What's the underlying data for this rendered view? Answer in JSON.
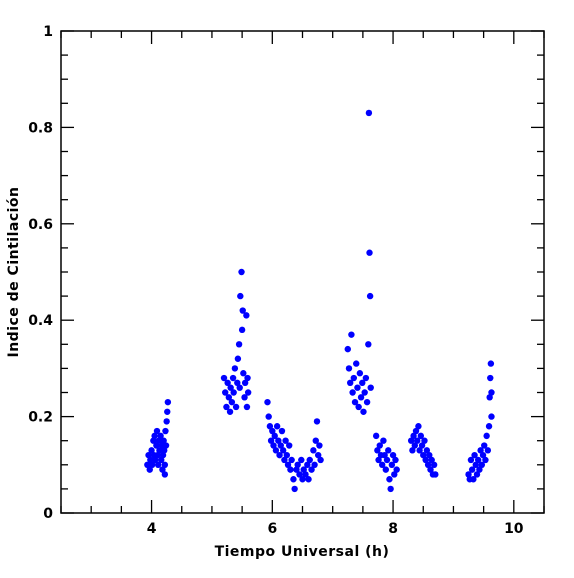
{
  "chart_data": {
    "type": "scatter",
    "title": "",
    "xlabel": "Tiempo Universal (h)",
    "ylabel": "Indice de Cintilación",
    "xlim": [
      2.5,
      10.5
    ],
    "ylim": [
      0,
      1
    ],
    "x_ticks": [
      4,
      6,
      8,
      10
    ],
    "x_tick_labels": [
      "4",
      "6",
      "8",
      "10"
    ],
    "y_ticks": [
      0,
      0.2,
      0.4,
      0.6,
      0.8,
      1
    ],
    "y_tick_labels": [
      "0",
      "0.2",
      "0.4",
      "0.6",
      "0.8",
      "1"
    ],
    "grid": false,
    "marker_color": "#0000ff",
    "series": [
      {
        "points": [
          [
            3.93,
            0.1
          ],
          [
            3.95,
            0.12
          ],
          [
            3.97,
            0.09
          ],
          [
            3.98,
            0.11
          ],
          [
            4.0,
            0.13
          ],
          [
            4.01,
            0.1
          ],
          [
            4.03,
            0.15
          ],
          [
            4.04,
            0.12
          ],
          [
            4.05,
            0.16
          ],
          [
            4.06,
            0.11
          ],
          [
            4.08,
            0.14
          ],
          [
            4.09,
            0.17
          ],
          [
            4.1,
            0.12
          ],
          [
            4.11,
            0.1
          ],
          [
            4.12,
            0.15
          ],
          [
            4.13,
            0.13
          ],
          [
            4.15,
            0.16
          ],
          [
            4.16,
            0.11
          ],
          [
            4.17,
            0.14
          ],
          [
            4.18,
            0.09
          ],
          [
            4.19,
            0.12
          ],
          [
            4.2,
            0.15
          ],
          [
            4.21,
            0.13
          ],
          [
            4.22,
            0.1
          ],
          [
            4.23,
            0.17
          ],
          [
            4.24,
            0.14
          ],
          [
            4.25,
            0.19
          ],
          [
            4.26,
            0.21
          ],
          [
            4.27,
            0.23
          ],
          [
            4.22,
            0.08
          ],
          [
            5.2,
            0.28
          ],
          [
            5.22,
            0.25
          ],
          [
            5.24,
            0.22
          ],
          [
            5.26,
            0.27
          ],
          [
            5.28,
            0.24
          ],
          [
            5.3,
            0.21
          ],
          [
            5.31,
            0.26
          ],
          [
            5.33,
            0.23
          ],
          [
            5.35,
            0.28
          ],
          [
            5.36,
            0.25
          ],
          [
            5.38,
            0.3
          ],
          [
            5.4,
            0.22
          ],
          [
            5.42,
            0.27
          ],
          [
            5.43,
            0.32
          ],
          [
            5.45,
            0.35
          ],
          [
            5.46,
            0.26
          ],
          [
            5.47,
            0.45
          ],
          [
            5.49,
            0.5
          ],
          [
            5.5,
            0.38
          ],
          [
            5.51,
            0.42
          ],
          [
            5.52,
            0.29
          ],
          [
            5.54,
            0.24
          ],
          [
            5.55,
            0.27
          ],
          [
            5.57,
            0.41
          ],
          [
            5.58,
            0.22
          ],
          [
            5.59,
            0.28
          ],
          [
            5.6,
            0.25
          ],
          [
            5.92,
            0.23
          ],
          [
            5.94,
            0.2
          ],
          [
            5.96,
            0.18
          ],
          [
            5.98,
            0.15
          ],
          [
            6.0,
            0.17
          ],
          [
            6.02,
            0.14
          ],
          [
            6.04,
            0.16
          ],
          [
            6.06,
            0.13
          ],
          [
            6.08,
            0.18
          ],
          [
            6.1,
            0.15
          ],
          [
            6.12,
            0.12
          ],
          [
            6.14,
            0.14
          ],
          [
            6.16,
            0.17
          ],
          [
            6.18,
            0.13
          ],
          [
            6.2,
            0.11
          ],
          [
            6.22,
            0.15
          ],
          [
            6.24,
            0.12
          ],
          [
            6.26,
            0.1
          ],
          [
            6.28,
            0.14
          ],
          [
            6.3,
            0.09
          ],
          [
            6.32,
            0.11
          ],
          [
            6.35,
            0.07
          ],
          [
            6.37,
            0.05
          ],
          [
            6.4,
            0.09
          ],
          [
            6.42,
            0.1
          ],
          [
            6.45,
            0.08
          ],
          [
            6.48,
            0.11
          ],
          [
            6.5,
            0.07
          ],
          [
            6.52,
            0.09
          ],
          [
            6.55,
            0.08
          ],
          [
            6.58,
            0.1
          ],
          [
            6.6,
            0.07
          ],
          [
            6.62,
            0.11
          ],
          [
            6.65,
            0.09
          ],
          [
            6.68,
            0.13
          ],
          [
            6.7,
            0.1
          ],
          [
            6.72,
            0.15
          ],
          [
            6.74,
            0.19
          ],
          [
            6.76,
            0.12
          ],
          [
            6.78,
            0.14
          ],
          [
            6.8,
            0.11
          ],
          [
            7.25,
            0.34
          ],
          [
            7.27,
            0.3
          ],
          [
            7.29,
            0.27
          ],
          [
            7.31,
            0.37
          ],
          [
            7.33,
            0.25
          ],
          [
            7.35,
            0.28
          ],
          [
            7.37,
            0.23
          ],
          [
            7.39,
            0.31
          ],
          [
            7.41,
            0.26
          ],
          [
            7.43,
            0.22
          ],
          [
            7.45,
            0.29
          ],
          [
            7.47,
            0.24
          ],
          [
            7.49,
            0.27
          ],
          [
            7.51,
            0.21
          ],
          [
            7.53,
            0.25
          ],
          [
            7.55,
            0.28
          ],
          [
            7.57,
            0.23
          ],
          [
            7.59,
            0.35
          ],
          [
            7.6,
            0.83
          ],
          [
            7.61,
            0.54
          ],
          [
            7.62,
            0.45
          ],
          [
            7.63,
            0.26
          ],
          [
            7.72,
            0.16
          ],
          [
            7.74,
            0.13
          ],
          [
            7.76,
            0.11
          ],
          [
            7.78,
            0.14
          ],
          [
            7.8,
            0.12
          ],
          [
            7.82,
            0.1
          ],
          [
            7.84,
            0.15
          ],
          [
            7.86,
            0.12
          ],
          [
            7.88,
            0.09
          ],
          [
            7.9,
            0.11
          ],
          [
            7.92,
            0.13
          ],
          [
            7.94,
            0.07
          ],
          [
            7.96,
            0.05
          ],
          [
            7.98,
            0.1
          ],
          [
            8.0,
            0.12
          ],
          [
            8.02,
            0.08
          ],
          [
            8.04,
            0.11
          ],
          [
            8.06,
            0.09
          ],
          [
            8.3,
            0.15
          ],
          [
            8.32,
            0.13
          ],
          [
            8.34,
            0.16
          ],
          [
            8.36,
            0.14
          ],
          [
            8.38,
            0.17
          ],
          [
            8.4,
            0.15
          ],
          [
            8.42,
            0.18
          ],
          [
            8.44,
            0.13
          ],
          [
            8.46,
            0.16
          ],
          [
            8.48,
            0.14
          ],
          [
            8.5,
            0.12
          ],
          [
            8.52,
            0.15
          ],
          [
            8.54,
            0.11
          ],
          [
            8.56,
            0.13
          ],
          [
            8.58,
            0.1
          ],
          [
            8.6,
            0.12
          ],
          [
            8.62,
            0.09
          ],
          [
            8.64,
            0.11
          ],
          [
            8.66,
            0.08
          ],
          [
            8.68,
            0.1
          ],
          [
            8.7,
            0.08
          ],
          [
            9.25,
            0.08
          ],
          [
            9.27,
            0.07
          ],
          [
            9.29,
            0.11
          ],
          [
            9.31,
            0.09
          ],
          [
            9.33,
            0.07
          ],
          [
            9.35,
            0.12
          ],
          [
            9.37,
            0.1
          ],
          [
            9.39,
            0.08
          ],
          [
            9.41,
            0.11
          ],
          [
            9.43,
            0.09
          ],
          [
            9.45,
            0.13
          ],
          [
            9.47,
            0.1
          ],
          [
            9.49,
            0.12
          ],
          [
            9.51,
            0.14
          ],
          [
            9.53,
            0.11
          ],
          [
            9.55,
            0.16
          ],
          [
            9.57,
            0.13
          ],
          [
            9.59,
            0.18
          ],
          [
            9.6,
            0.24
          ],
          [
            9.61,
            0.28
          ],
          [
            9.62,
            0.31
          ],
          [
            9.63,
            0.25
          ],
          [
            9.63,
            0.2
          ]
        ]
      }
    ]
  }
}
